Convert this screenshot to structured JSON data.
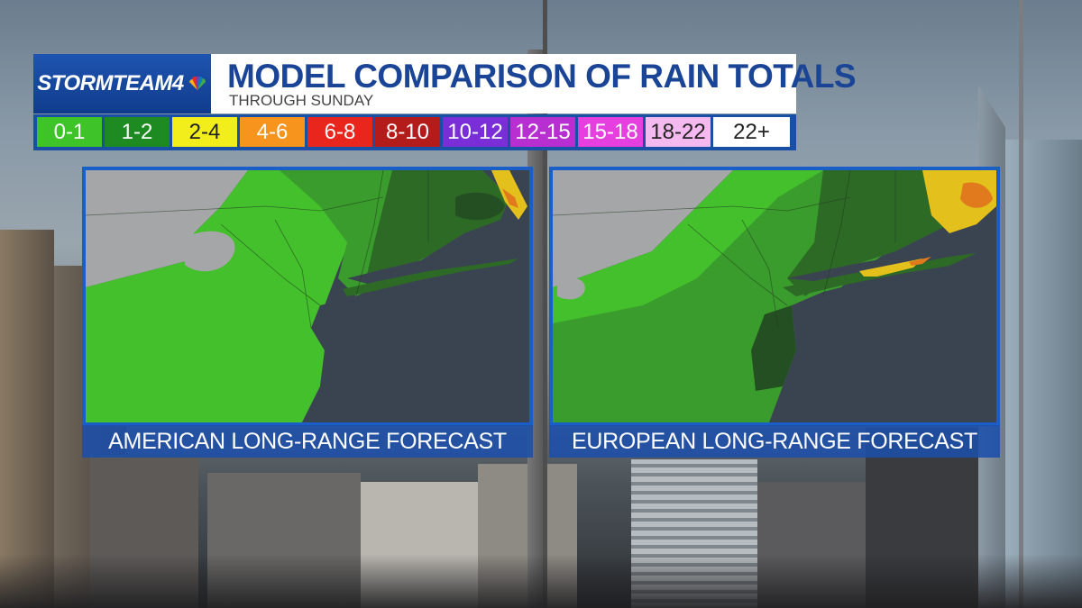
{
  "header": {
    "logo": "STORMTEAM4",
    "title": "MODEL COMPARISON OF RAIN TOTALS",
    "subtitle": "THROUGH SUNDAY"
  },
  "legend": [
    {
      "label": "0-1",
      "color": "#3ec428",
      "text": "#ffffff"
    },
    {
      "label": "1-2",
      "color": "#1e8a22",
      "text": "#ffffff"
    },
    {
      "label": "2-4",
      "color": "#f2ee1c",
      "text": "#222222"
    },
    {
      "label": "4-6",
      "color": "#f7941e",
      "text": "#ffffff"
    },
    {
      "label": "6-8",
      "color": "#e8261e",
      "text": "#ffffff"
    },
    {
      "label": "8-10",
      "color": "#b41c1c",
      "text": "#ffffff"
    },
    {
      "label": "10-12",
      "color": "#7a2ed8",
      "text": "#ffffff"
    },
    {
      "label": "12-15",
      "color": "#b72fd0",
      "text": "#ffffff"
    },
    {
      "label": "15-18",
      "color": "#e63fe0",
      "text": "#ffffff"
    },
    {
      "label": "18-22",
      "color": "#f4b9ef",
      "text": "#222222"
    },
    {
      "label": "22+",
      "color": "#ffffff",
      "text": "#222222"
    }
  ],
  "maps": {
    "left_caption": "AMERICAN LONG-RANGE FORECAST",
    "right_caption": "EUROPEAN LONG-RANGE FORECAST"
  },
  "colors": {
    "water": "#3a4450",
    "land_dry": "#a4a6a8",
    "green_light": "#44c02c",
    "green_mid": "#3a9c2c",
    "green_dark": "#2d6a26",
    "green_darker": "#244f22",
    "yellow": "#e3c01c",
    "orange": "#e07a1c"
  }
}
